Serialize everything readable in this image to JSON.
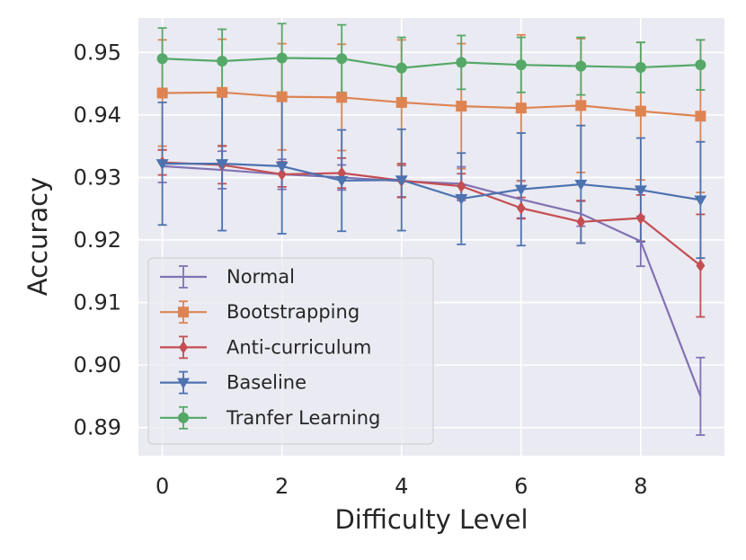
{
  "chart_data": {
    "type": "line",
    "title": "",
    "xlabel": "Difficulty Level",
    "ylabel": "Accuracy",
    "xlim": [
      -0.4,
      9.4
    ],
    "ylim": [
      0.8855,
      0.9555
    ],
    "xticks": [
      0,
      2,
      4,
      6,
      8
    ],
    "xtick_labels": [
      "0",
      "2",
      "4",
      "6",
      "8"
    ],
    "yticks": [
      0.89,
      0.9,
      0.91,
      0.92,
      0.93,
      0.94,
      0.95
    ],
    "ytick_labels": [
      "0.89",
      "0.90",
      "0.91",
      "0.92",
      "0.93",
      "0.94",
      "0.95"
    ],
    "grid": true,
    "legend_position": "lower-left",
    "x": [
      0,
      1,
      2,
      3,
      4,
      5,
      6,
      7,
      8,
      9
    ],
    "series": [
      {
        "name": "Normal",
        "color": "#8172b3",
        "marker": "none",
        "values": [
          0.9318,
          0.9312,
          0.9305,
          0.93,
          0.9294,
          0.929,
          0.9265,
          0.9242,
          0.9198,
          0.895
        ],
        "errors": [
          0.0026,
          0.003,
          0.0024,
          0.002,
          0.0025,
          0.0027,
          0.003,
          0.002,
          0.004,
          0.0062
        ]
      },
      {
        "name": "Bootstrapping",
        "color": "#dd8452",
        "marker": "square",
        "values": [
          0.9435,
          0.9436,
          0.9429,
          0.9428,
          0.942,
          0.9414,
          0.9411,
          0.9415,
          0.9406,
          0.9398
        ],
        "errors": [
          0.0085,
          0.0085,
          0.0085,
          0.0085,
          0.01,
          0.01,
          0.0117,
          0.0107,
          0.011,
          0.0122
        ]
      },
      {
        "name": "Anti-curriculum",
        "color": "#c44e52",
        "marker": "diamond",
        "values": [
          0.9324,
          0.932,
          0.9305,
          0.9307,
          0.9295,
          0.9286,
          0.9251,
          0.9229,
          0.9235,
          0.9159
        ],
        "errors": [
          0.002,
          0.003,
          0.002,
          0.0024,
          0.0027,
          0.002,
          0.0017,
          0.0034,
          0.0037,
          0.0082
        ]
      },
      {
        "name": "Baseline",
        "color": "#4c72b0",
        "marker": "triangle-down",
        "values": [
          0.9322,
          0.9322,
          0.9318,
          0.9295,
          0.9296,
          0.9266,
          0.9281,
          0.9289,
          0.928,
          0.9264
        ],
        "errors": [
          0.0098,
          0.0107,
          0.0108,
          0.0081,
          0.0081,
          0.0073,
          0.009,
          0.0094,
          0.0083,
          0.0093
        ]
      },
      {
        "name": "Tranfer Learning",
        "color": "#55a868",
        "marker": "circle",
        "values": [
          0.949,
          0.9486,
          0.9491,
          0.949,
          0.9475,
          0.9484,
          0.948,
          0.9478,
          0.9476,
          0.948
        ],
        "errors": [
          0.0049,
          0.0051,
          0.0055,
          0.0054,
          0.0049,
          0.0043,
          0.0044,
          0.0046,
          0.004,
          0.004
        ]
      }
    ]
  }
}
